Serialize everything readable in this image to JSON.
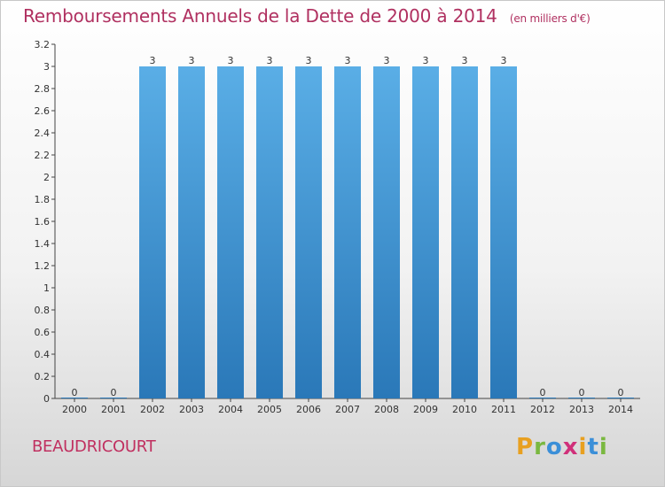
{
  "header": {
    "title": "Remboursements Annuels de la Dette de 2000 à 2014",
    "unit": "(en milliers d'€)"
  },
  "footer": {
    "commune": "BEAUDRICOURT",
    "logo": "Proxiti"
  },
  "colors": {
    "bar_top": "#5aaee6",
    "bar_bottom": "#2a78b8",
    "title": "#b03060",
    "axis": "#333333"
  },
  "chart_data": {
    "type": "bar",
    "title": "Remboursements Annuels de la Dette de 2000 à 2014",
    "subtitle": "(en milliers d'€)",
    "xlabel": "",
    "ylabel": "",
    "categories": [
      "2000",
      "2001",
      "2002",
      "2003",
      "2004",
      "2005",
      "2006",
      "2007",
      "2008",
      "2009",
      "2010",
      "2011",
      "2012",
      "2013",
      "2014"
    ],
    "values": [
      0,
      0,
      3,
      3,
      3,
      3,
      3,
      3,
      3,
      3,
      3,
      3,
      0,
      0,
      0
    ],
    "value_labels": [
      "0",
      "0",
      "3",
      "3",
      "3",
      "3",
      "3",
      "3",
      "3",
      "3",
      "3",
      "3",
      "0",
      "0",
      "0"
    ],
    "ylim": [
      0,
      3.2
    ],
    "yticks": [
      "0",
      "0.2",
      "0.4",
      "0.6",
      "0.8",
      "1",
      "1.2",
      "1.4",
      "1.6",
      "1.8",
      "2",
      "2.2",
      "2.4",
      "2.6",
      "2.8",
      "3",
      "3.2"
    ],
    "ytick_values": [
      0,
      0.2,
      0.4,
      0.6,
      0.8,
      1,
      1.2,
      1.4,
      1.6,
      1.8,
      2,
      2.2,
      2.4,
      2.6,
      2.8,
      3,
      3.2
    ],
    "grid": false,
    "legend": "none"
  }
}
